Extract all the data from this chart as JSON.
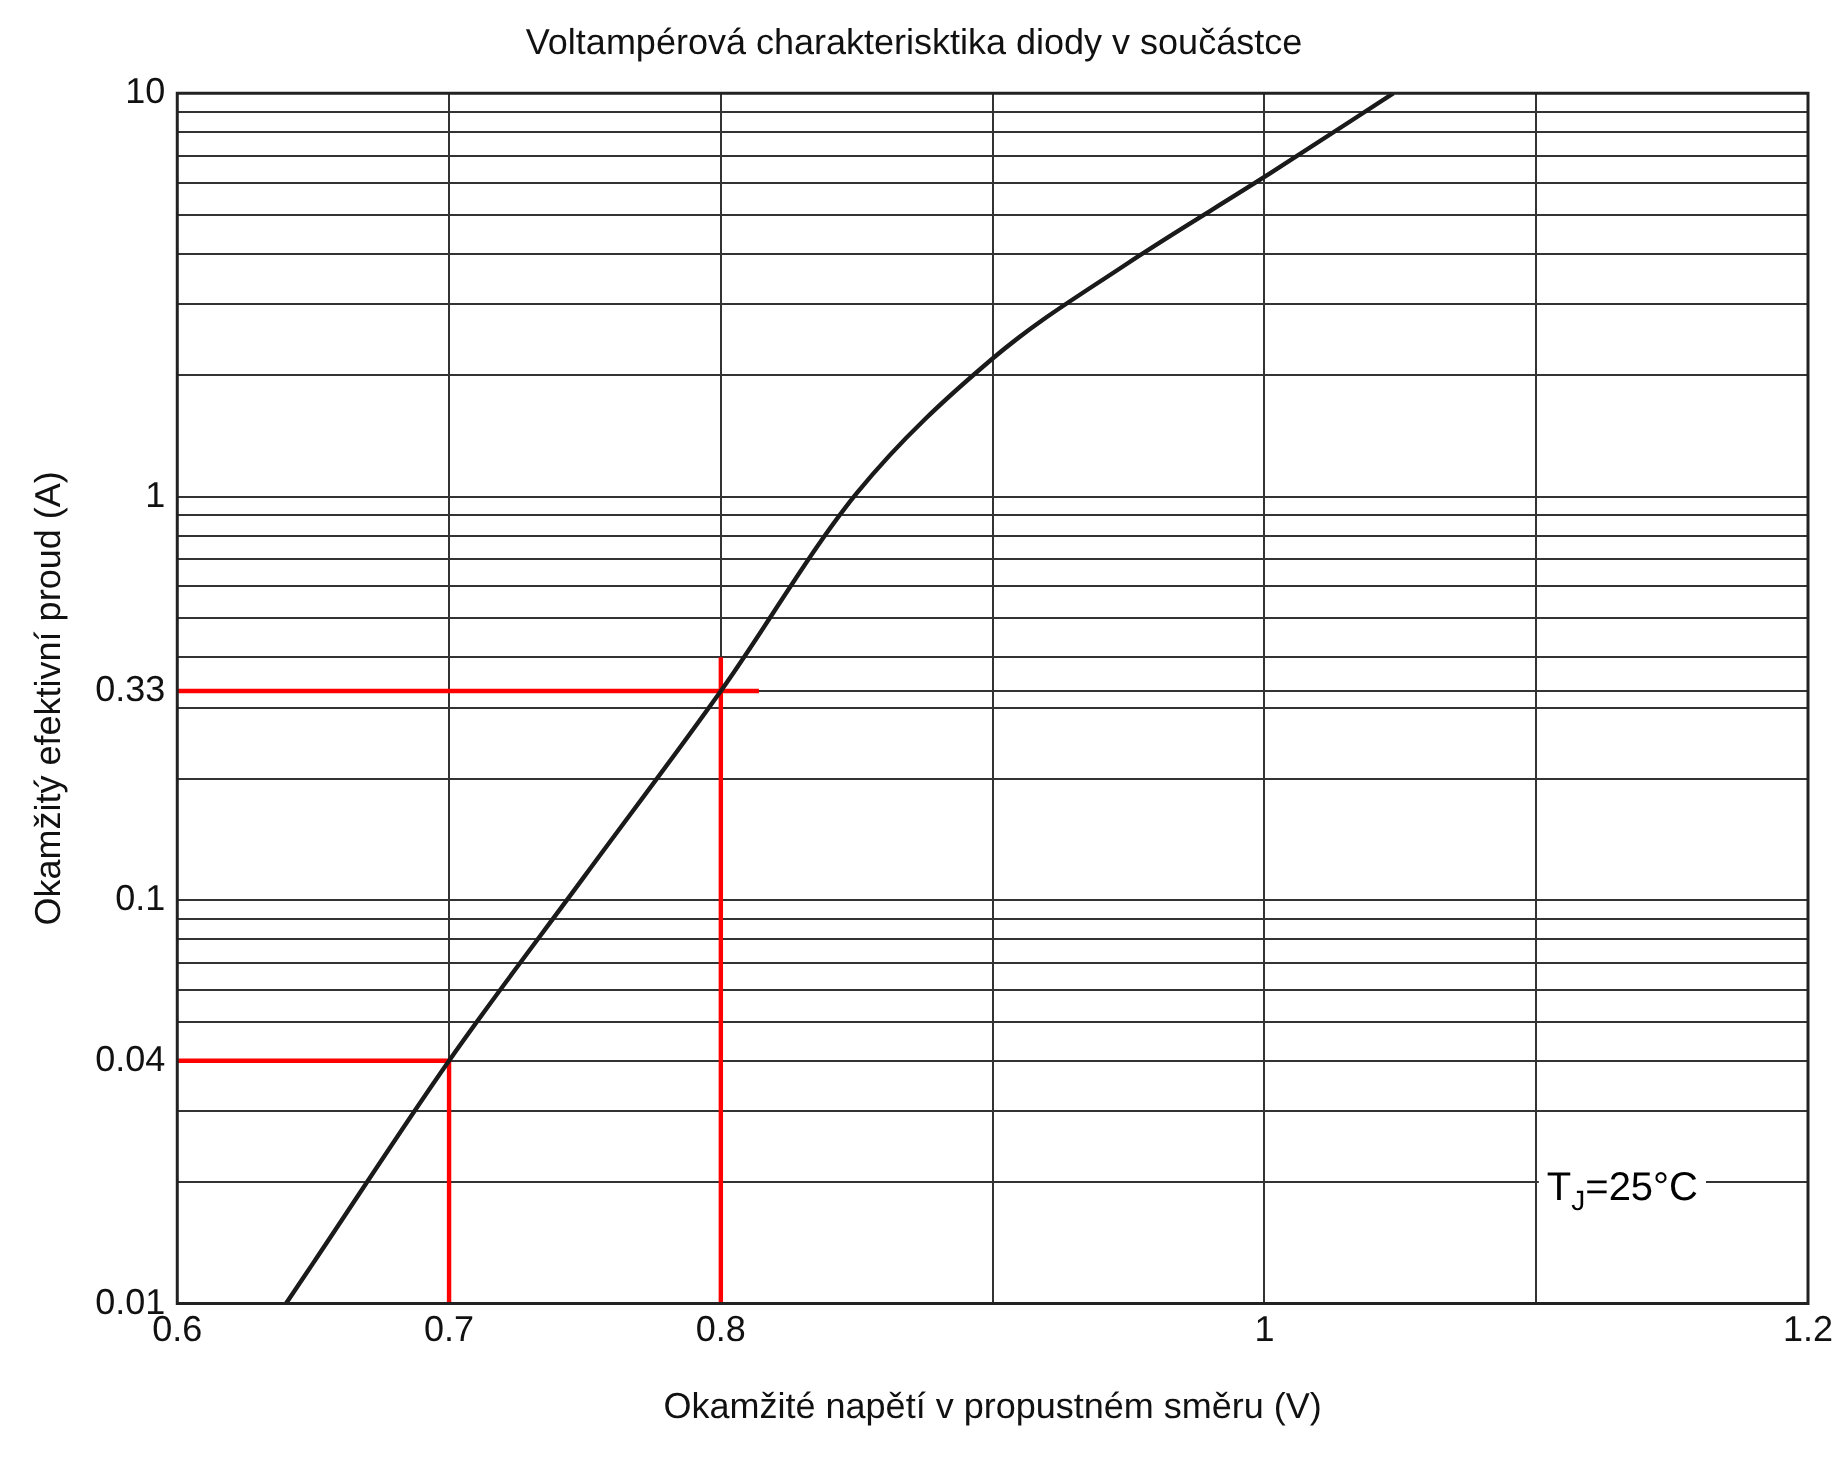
{
  "chart_data": {
    "type": "line",
    "title": "Voltampérová charakterisktika diody v součástce",
    "xlabel": "Okamžité napětí v propustném směru (V)",
    "ylabel": "Okamžitý efektivní proud (A)",
    "annotations": [
      "T$_{J}$=25°C"
    ],
    "log": "y",
    "grid": true,
    "legend": false,
    "marker": "none",
    "line_style": "solid",
    "xlim": [
      0.6,
      1.2
    ],
    "xticks": [
      0.6,
      0.7,
      0.8,
      {
        "value": 0.9,
        "label": null
      },
      1.0,
      {
        "value": 1.1,
        "label": null
      },
      1.2
    ],
    "ylim": [
      0.01,
      10
    ],
    "yticks": [
      0.01,
      {
        "value": 0.02,
        "label": null
      },
      {
        "value": 0.03,
        "label": null
      },
      0.04,
      {
        "value": 0.05,
        "label": null
      },
      {
        "value": 0.06,
        "label": null
      },
      {
        "value": 0.07,
        "label": null
      },
      {
        "value": 0.08,
        "label": null
      },
      {
        "value": 0.09,
        "label": null
      },
      0.1,
      {
        "value": 0.2,
        "label": null
      },
      {
        "value": 0.3,
        "label": null
      },
      0.33,
      {
        "value": 0.4,
        "label": null
      },
      {
        "value": 0.5,
        "label": null
      },
      {
        "value": 0.6,
        "label": null
      },
      {
        "value": 0.7,
        "label": null
      },
      {
        "value": 0.8,
        "label": null
      },
      {
        "value": 0.9,
        "label": null
      },
      1,
      {
        "value": 2,
        "label": null
      },
      {
        "value": 3,
        "label": null
      },
      {
        "value": 4,
        "label": null
      },
      {
        "value": 5,
        "label": null
      },
      {
        "value": 6,
        "label": null
      },
      {
        "value": 7,
        "label": null
      },
      {
        "value": 8,
        "label": null
      },
      {
        "value": 9,
        "label": null
      },
      10
    ],
    "series": [
      {
        "color": "#1a1a1a",
        "x": [
          0.64,
          0.65,
          0.7,
          0.75,
          0.8,
          0.85,
          0.9,
          0.95,
          1.0,
          1.0475
        ],
        "values": [
          0.01,
          0.0126,
          0.04,
          0.115,
          0.33,
          1.02,
          2.2,
          3.8,
          6.2,
          10
        ]
      },
      {
        "color": "#ff0000",
        "x": [
          0.6,
          0.7
        ],
        "values": [
          0.04,
          0.04
        ]
      },
      {
        "color": "#ff0000",
        "x": [
          0.7,
          0.7
        ],
        "values": [
          0.01,
          0.04
        ]
      },
      {
        "color": "#ff0000",
        "x": [
          0.6,
          0.814
        ],
        "values": [
          0.33,
          0.33
        ]
      },
      {
        "color": "#ff0000",
        "x": [
          0.8,
          0.8
        ],
        "values": [
          0.01,
          0.4
        ]
      }
    ]
  }
}
